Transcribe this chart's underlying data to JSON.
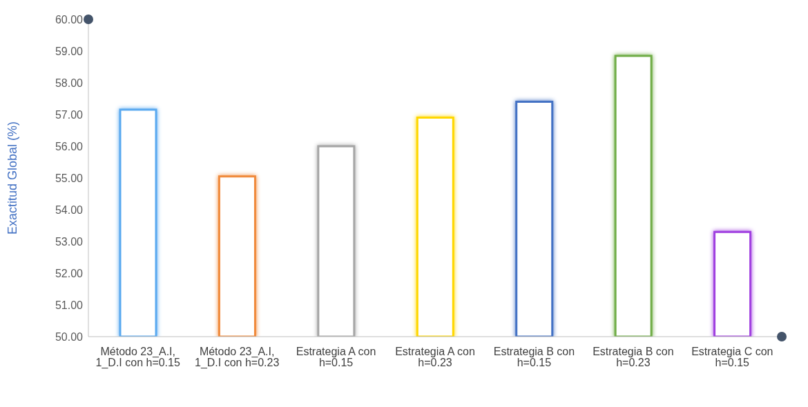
{
  "chart_data": {
    "type": "bar",
    "ylabel": "Exactitud Global (%)",
    "categories": [
      "Método 23_A.I, 1_D.I con h=0.15",
      "Método 23_A.I, 1_D.I con h=0.23",
      "Estrategia A con h=0.15",
      "Estrategia A con h=0.23",
      "Estrategia B con h=0.15",
      "Estrategia B con h=0.23",
      "Estrategia C con h=0.15"
    ],
    "values": [
      57.15,
      55.05,
      56.0,
      56.9,
      57.4,
      58.85,
      53.3
    ],
    "colors": [
      "#5aa9f0",
      "#f08a3c",
      "#a6a6a6",
      "#ffd700",
      "#4472c4",
      "#70ad47",
      "#a040e0"
    ],
    "ylim": [
      50,
      60
    ],
    "yticks": [
      {
        "value": 50,
        "label": "50.00"
      },
      {
        "value": 51,
        "label": "51.00"
      },
      {
        "value": 52,
        "label": "52.00"
      },
      {
        "value": 53,
        "label": "53.00"
      },
      {
        "value": 54,
        "label": "54.00"
      },
      {
        "value": 55,
        "label": "55.00"
      },
      {
        "value": 56,
        "label": "56.00"
      },
      {
        "value": 57,
        "label": "57.00"
      },
      {
        "value": 58,
        "label": "58.00"
      },
      {
        "value": 59,
        "label": "59.00"
      },
      {
        "value": 60,
        "label": "60.00"
      }
    ],
    "grid": false,
    "legend": false
  }
}
